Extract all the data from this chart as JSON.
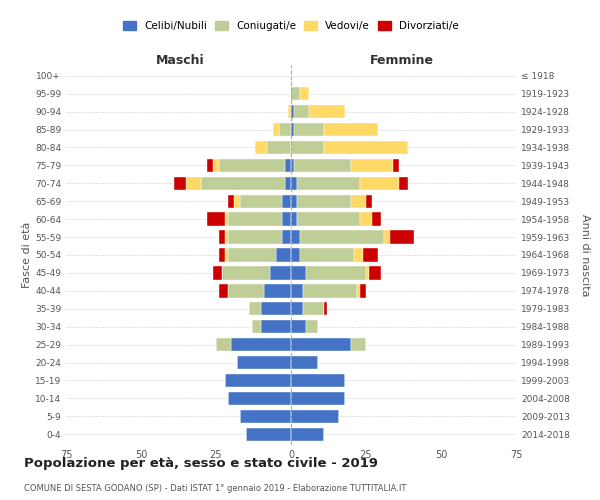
{
  "age_groups": [
    "0-4",
    "5-9",
    "10-14",
    "15-19",
    "20-24",
    "25-29",
    "30-34",
    "35-39",
    "40-44",
    "45-49",
    "50-54",
    "55-59",
    "60-64",
    "65-69",
    "70-74",
    "75-79",
    "80-84",
    "85-89",
    "90-94",
    "95-99",
    "100+"
  ],
  "birth_years": [
    "2014-2018",
    "2009-2013",
    "2004-2008",
    "1999-2003",
    "1994-1998",
    "1989-1993",
    "1984-1988",
    "1979-1983",
    "1974-1978",
    "1969-1973",
    "1964-1968",
    "1959-1963",
    "1954-1958",
    "1949-1953",
    "1944-1948",
    "1939-1943",
    "1934-1938",
    "1929-1933",
    "1924-1928",
    "1919-1923",
    "≤ 1918"
  ],
  "colors": {
    "celibi": "#4472C4",
    "coniugati": "#BFCE96",
    "vedovi": "#FFD966",
    "divorziati": "#CC0000"
  },
  "maschi": {
    "celibi": [
      15,
      17,
      21,
      22,
      18,
      20,
      10,
      10,
      9,
      7,
      5,
      3,
      3,
      3,
      2,
      2,
      0,
      0,
      0,
      0,
      0
    ],
    "coniugati": [
      0,
      0,
      0,
      0,
      0,
      5,
      3,
      4,
      12,
      16,
      16,
      18,
      18,
      14,
      28,
      22,
      8,
      4,
      0,
      0,
      0
    ],
    "vedovi": [
      0,
      0,
      0,
      0,
      0,
      0,
      0,
      0,
      0,
      0,
      1,
      1,
      1,
      2,
      5,
      2,
      4,
      2,
      1,
      0,
      0
    ],
    "divorziati": [
      0,
      0,
      0,
      0,
      0,
      0,
      0,
      0,
      3,
      3,
      2,
      2,
      6,
      2,
      4,
      2,
      0,
      0,
      0,
      0,
      0
    ]
  },
  "femmine": {
    "celibi": [
      11,
      16,
      18,
      18,
      9,
      20,
      5,
      4,
      4,
      5,
      3,
      3,
      2,
      2,
      2,
      1,
      0,
      1,
      1,
      0,
      0
    ],
    "coniugati": [
      0,
      0,
      0,
      0,
      0,
      5,
      4,
      7,
      18,
      20,
      18,
      28,
      21,
      18,
      21,
      19,
      11,
      10,
      5,
      3,
      0
    ],
    "vedovi": [
      0,
      0,
      0,
      0,
      0,
      0,
      0,
      0,
      1,
      1,
      3,
      2,
      4,
      5,
      13,
      14,
      28,
      18,
      12,
      3,
      0
    ],
    "divorziati": [
      0,
      0,
      0,
      0,
      0,
      0,
      0,
      1,
      2,
      4,
      5,
      8,
      3,
      2,
      3,
      2,
      0,
      0,
      0,
      0,
      0
    ]
  },
  "xlim": 75,
  "title": "Popolazione per età, sesso e stato civile - 2019",
  "subtitle": "COMUNE DI SESTA GODANO (SP) - Dati ISTAT 1° gennaio 2019 - Elaborazione TUTTITALIA.IT",
  "ylabel_left": "Fasce di età",
  "ylabel_right": "Anni di nascita",
  "xlabel_maschi": "Maschi",
  "xlabel_femmine": "Femmine",
  "legend_labels": [
    "Celibi/Nubili",
    "Coniugati/e",
    "Vedovi/e",
    "Divorziati/e"
  ],
  "bg_color": "#FFFFFF",
  "grid_color": "#CCCCCC",
  "tick_color": "#555555"
}
